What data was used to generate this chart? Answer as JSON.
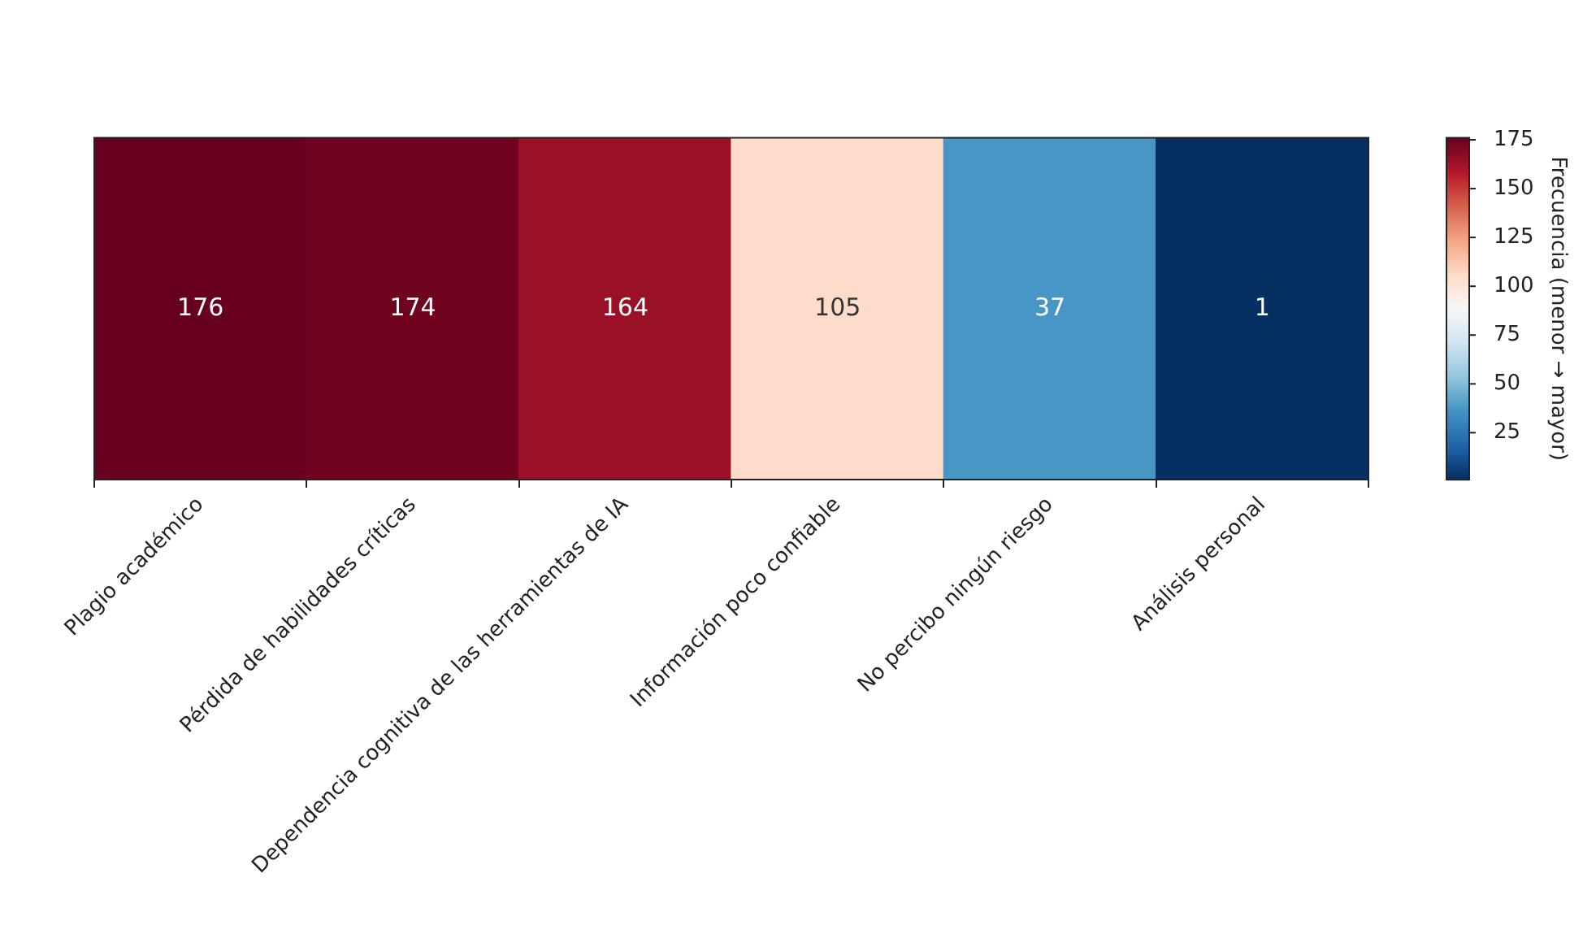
{
  "chart_data": {
    "type": "heatmap",
    "categories": [
      "Plagio académico",
      "Pérdida de habilidades críticas",
      "Dependencia cognitiva de las herramientas de IA",
      "Información poco confiable",
      "No percibo ningún riesgo",
      "Análisis personal"
    ],
    "y_categories": [
      null
    ],
    "cells": [
      [
        176,
        174,
        164,
        105,
        37,
        1
      ]
    ],
    "clabel": "Frecuencia (menor → mayor)",
    "clim": [
      1,
      176
    ],
    "cticks": [
      25,
      50,
      75,
      100,
      125,
      150,
      175
    ],
    "data_labels": true
  }
}
